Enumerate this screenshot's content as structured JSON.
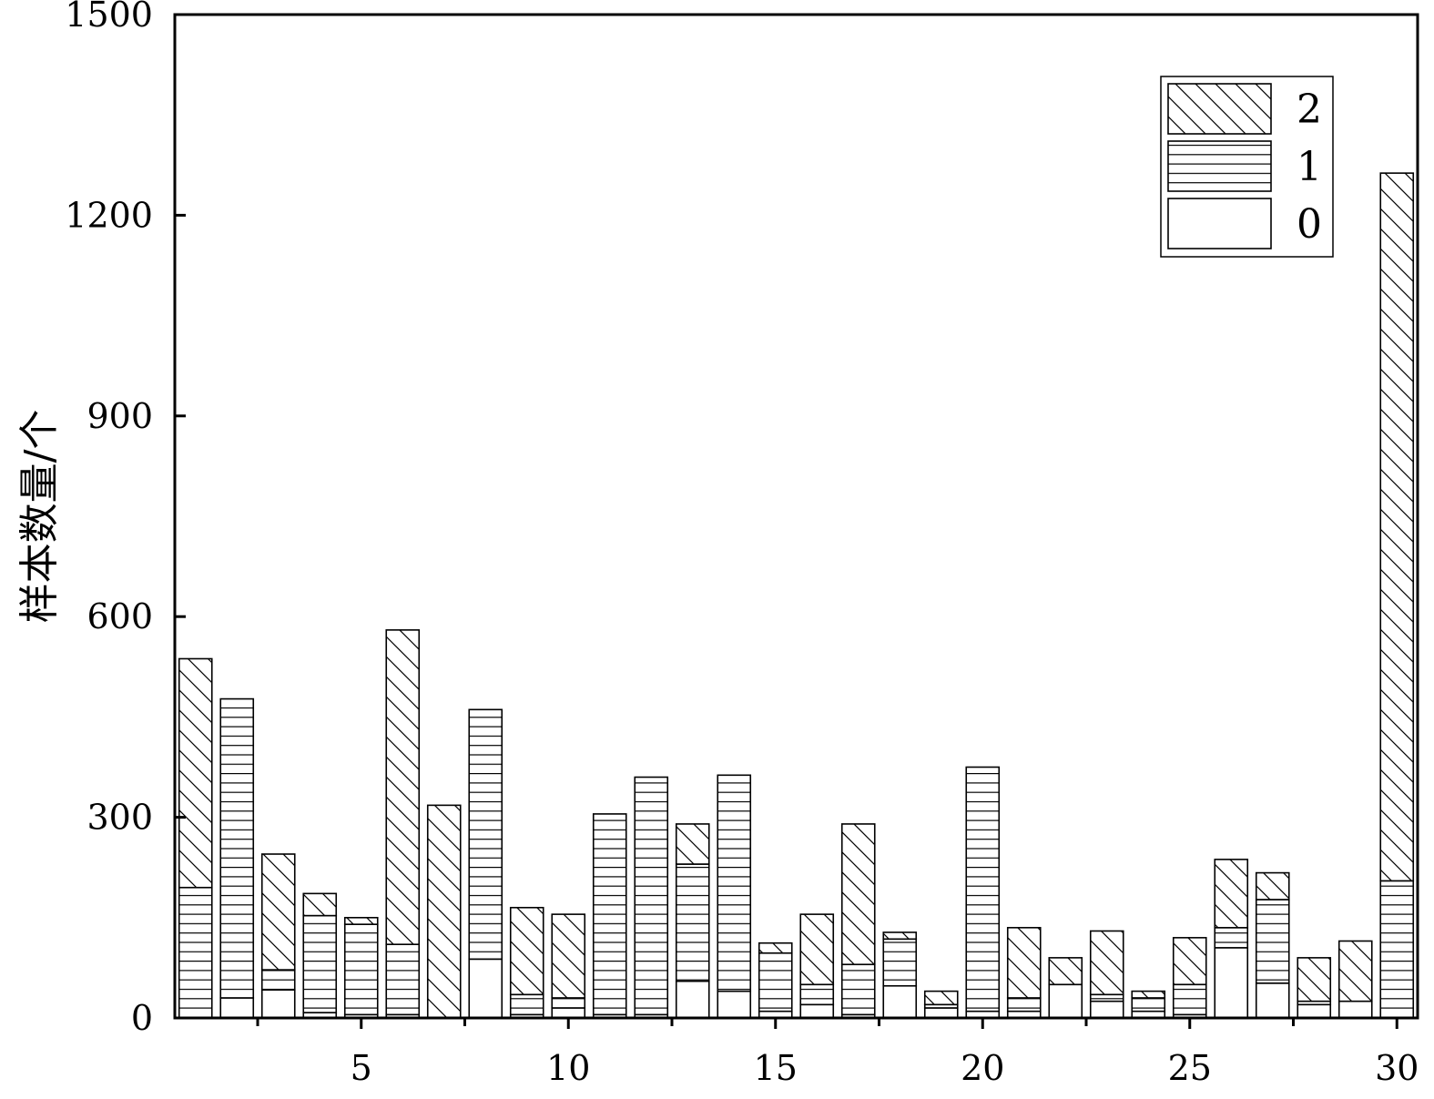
{
  "chart_data": {
    "type": "bar",
    "stacked": true,
    "title": "",
    "xlabel": "",
    "ylabel": "样本数量/个",
    "xlim": [
      0.5,
      30.5
    ],
    "ylim": [
      0,
      1500
    ],
    "yticks": [
      0,
      300,
      600,
      900,
      1200,
      1500
    ],
    "xticks": [
      5,
      10,
      15,
      20,
      25,
      30
    ],
    "x_minor_ticks": [
      2.5,
      7.5,
      12.5,
      17.5,
      22.5,
      27.5
    ],
    "grid": false,
    "legend_position": "top-right",
    "categories": [
      1,
      2,
      3,
      4,
      5,
      6,
      7,
      8,
      9,
      10,
      11,
      12,
      13,
      14,
      15,
      16,
      17,
      18,
      19,
      20,
      21,
      22,
      23,
      24,
      25,
      26,
      27,
      28,
      29,
      30
    ],
    "series": [
      {
        "name": "0",
        "pattern": "none",
        "values": [
          0,
          30,
          42,
          8,
          5,
          5,
          0,
          88,
          5,
          15,
          5,
          5,
          55,
          40,
          10,
          20,
          5,
          48,
          15,
          10,
          10,
          50,
          25,
          10,
          5,
          105,
          52,
          20,
          25,
          0
        ]
      },
      {
        "name": "1",
        "pattern": "horizontal-lines",
        "values": [
          195,
          447,
          30,
          145,
          135,
          105,
          0,
          373,
          30,
          15,
          300,
          355,
          175,
          323,
          87,
          30,
          75,
          70,
          5,
          365,
          20,
          0,
          10,
          20,
          45,
          30,
          125,
          5,
          0,
          205
        ]
      },
      {
        "name": "2",
        "pattern": "diagonal-lines",
        "values": [
          342,
          0,
          173,
          33,
          10,
          470,
          318,
          0,
          130,
          125,
          0,
          0,
          60,
          0,
          15,
          105,
          210,
          10,
          20,
          0,
          105,
          40,
          95,
          10,
          70,
          102,
          40,
          65,
          90,
          1058
        ]
      }
    ],
    "legend": [
      {
        "label": "2",
        "pattern": "diagonal-lines"
      },
      {
        "label": "1",
        "pattern": "horizontal-lines"
      },
      {
        "label": "0",
        "pattern": "none"
      }
    ]
  }
}
